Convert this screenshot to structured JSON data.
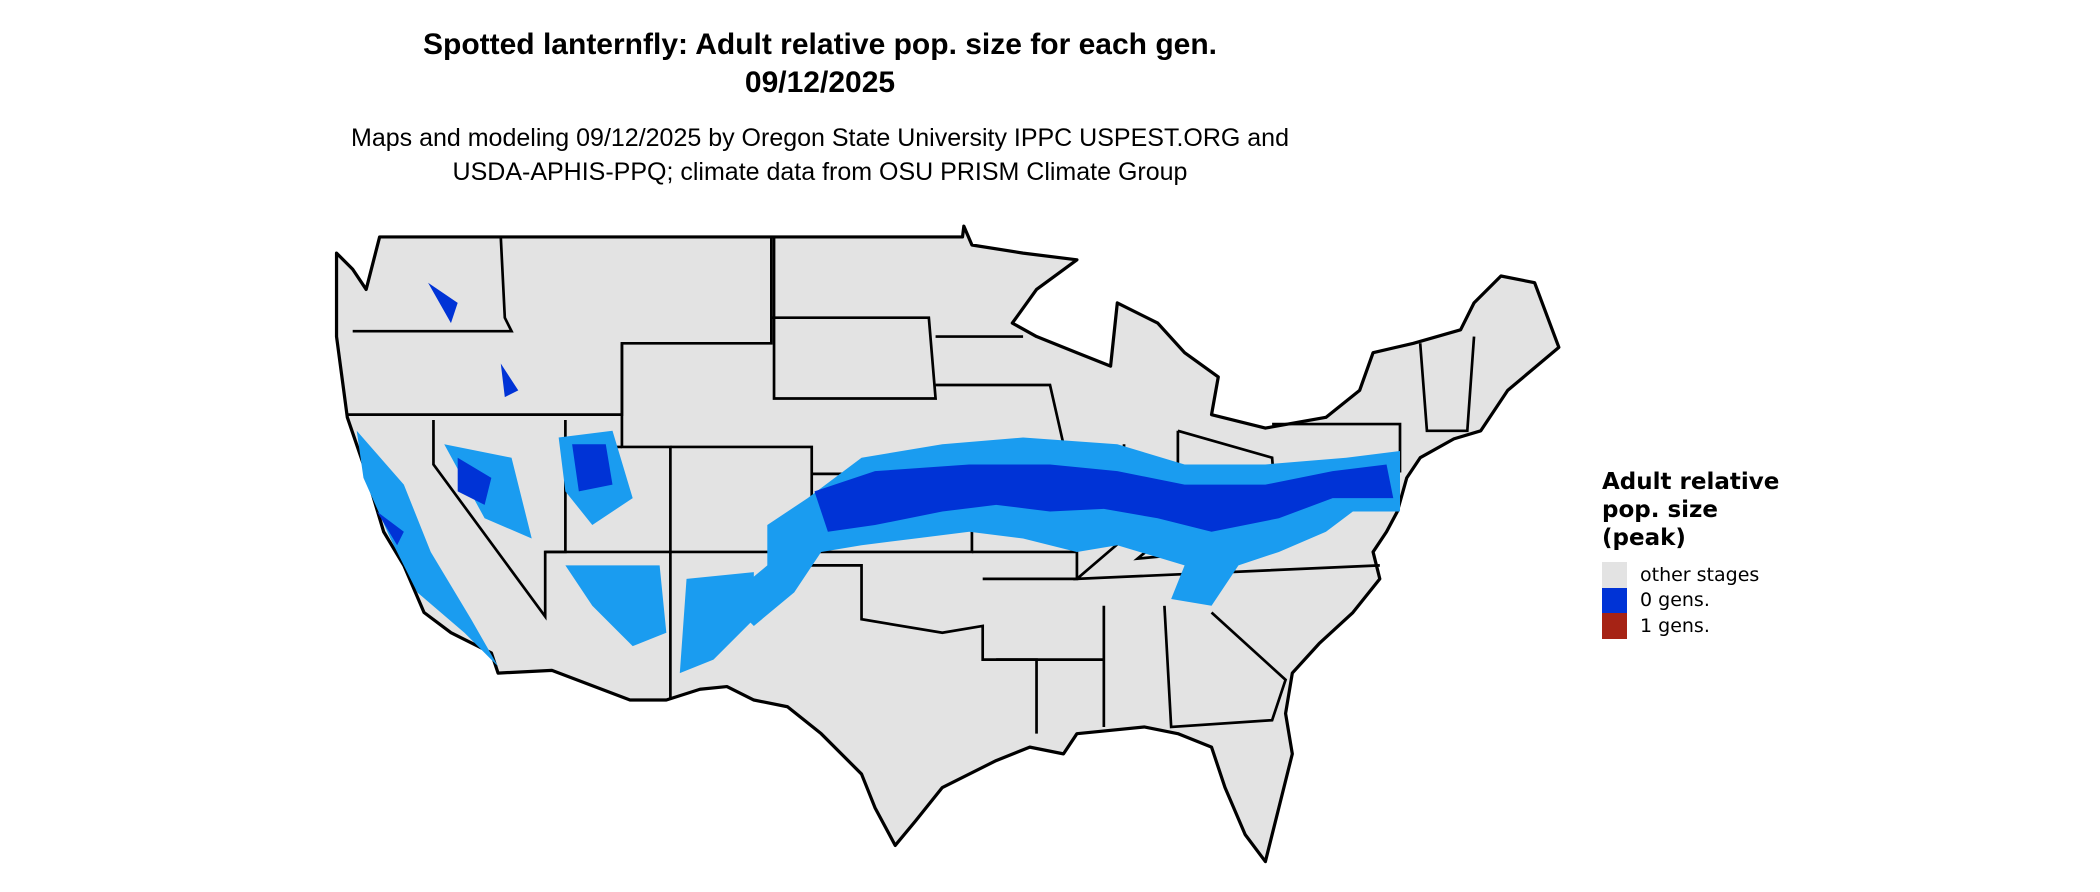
{
  "title_line1": "Spotted lanternfly: Adult relative pop. size for each gen.",
  "title_line2": "09/12/2025",
  "subtitle_line1": "Maps and modeling 09/12/2025 by Oregon State University IPPC USPEST.ORG and",
  "subtitle_line2": "USDA-APHIS-PPQ; climate data from OSU PRISM Climate Group",
  "legend": {
    "title_lines": [
      "Adult relative",
      "pop. size",
      "(peak)"
    ],
    "items": [
      {
        "label": "other stages",
        "color": "#e3e3e3"
      },
      {
        "label": "0 gens.",
        "color": "#0033d6"
      },
      {
        "label": "1 gens.",
        "color": "#a62315"
      }
    ]
  },
  "colors": {
    "land": "#e3e3e3",
    "border": "#000000",
    "light_blue": "#1a9cf0",
    "dark_blue": "#0033d6"
  }
}
